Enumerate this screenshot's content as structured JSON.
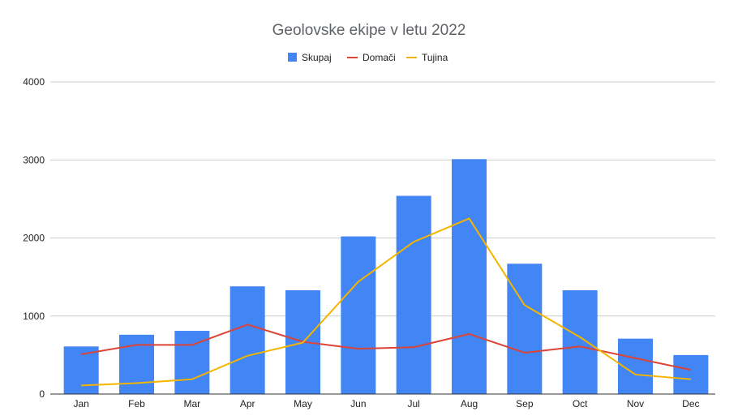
{
  "chart_data": {
    "type": "bar",
    "title": "Geolovske ekipe v letu 2022",
    "categories": [
      "Jan",
      "Feb",
      "Mar",
      "Apr",
      "May",
      "Jun",
      "Jul",
      "Aug",
      "Sep",
      "Oct",
      "Nov",
      "Dec"
    ],
    "series": [
      {
        "name": "Skupaj",
        "type": "bar",
        "color": "#4285f4",
        "values": [
          610,
          760,
          810,
          1380,
          1330,
          2020,
          2540,
          3010,
          1670,
          1330,
          710,
          500
        ]
      },
      {
        "name": "Domači",
        "type": "line",
        "color": "#db4437",
        "values": [
          510,
          630,
          630,
          890,
          670,
          580,
          600,
          770,
          530,
          610,
          460,
          310
        ]
      },
      {
        "name": "Tujina",
        "type": "line",
        "color": "#f4b400",
        "values": [
          110,
          140,
          190,
          490,
          660,
          1440,
          1950,
          2250,
          1140,
          730,
          250,
          190
        ]
      }
    ],
    "xlabel": "",
    "ylabel": "",
    "ylim": [
      0,
      4000
    ],
    "yticks": [
      "0",
      "1000",
      "2000",
      "3000",
      "4000"
    ],
    "grid": true,
    "legend": "top-center"
  }
}
